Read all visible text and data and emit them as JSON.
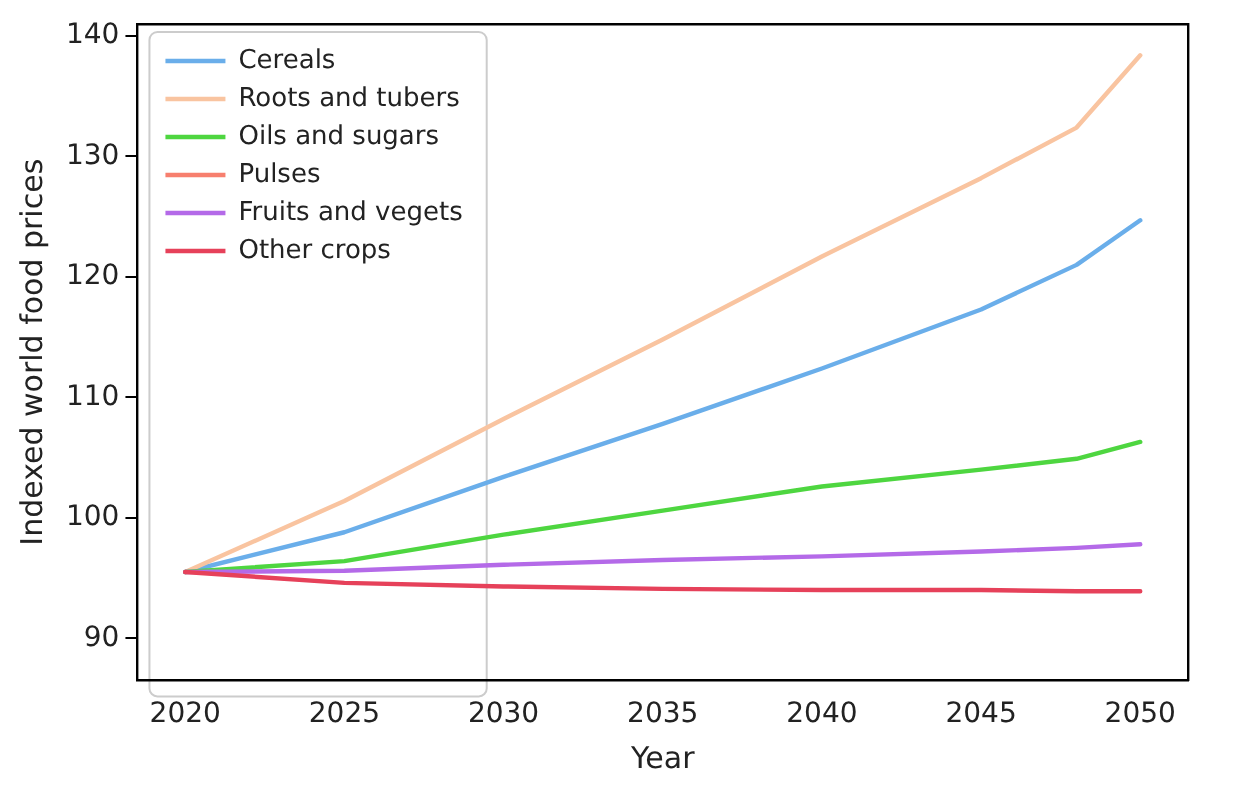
{
  "chart_data": {
    "type": "line",
    "xlabel": "Year",
    "ylabel": "Indexed world food prices",
    "x": [
      2020,
      2025,
      2030,
      2035,
      2040,
      2045,
      2048,
      2050
    ],
    "series": [
      {
        "name": "Cereals",
        "color": "#6aaeea",
        "values": [
          95.5,
          98.8,
          103.4,
          107.8,
          112.4,
          117.3,
          121.0,
          124.7
        ]
      },
      {
        "name": "Roots and tubers",
        "color": "#f9c4a0",
        "values": [
          95.5,
          101.4,
          108.2,
          114.8,
          121.7,
          128.2,
          132.4,
          138.4
        ]
      },
      {
        "name": "Oils and sugars",
        "color": "#4ed640",
        "values": [
          95.5,
          96.4,
          98.6,
          100.6,
          102.6,
          104.0,
          104.9,
          106.3
        ]
      },
      {
        "name": "Pulses",
        "color": "#f77f6e",
        "values": [
          null,
          null,
          null,
          null,
          null,
          null,
          null,
          null
        ]
      },
      {
        "name": "Fruits and vegets",
        "color": "#b46ae8",
        "values": [
          95.5,
          95.6,
          96.1,
          96.5,
          96.8,
          97.2,
          97.5,
          97.8
        ]
      },
      {
        "name": "Other crops",
        "color": "#e6415a",
        "values": [
          95.5,
          94.6,
          94.3,
          94.1,
          94.0,
          94.0,
          93.9,
          93.9
        ]
      }
    ],
    "xlim": [
      2018.5,
      2051.5
    ],
    "ylim": [
      86.5,
      141
    ],
    "xticks": [
      2020,
      2025,
      2030,
      2035,
      2040,
      2045,
      2050
    ],
    "yticks": [
      90,
      100,
      110,
      120,
      130,
      140
    ],
    "grid": false,
    "legend": "top left",
    "marker": "none",
    "line_style": "solid"
  }
}
